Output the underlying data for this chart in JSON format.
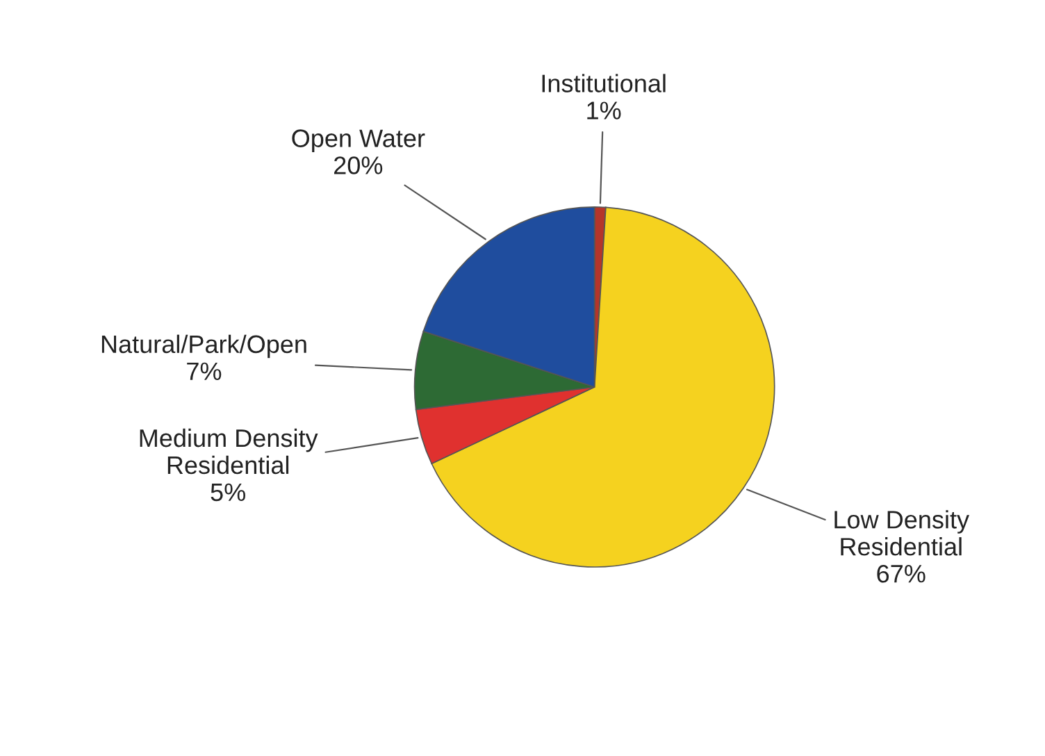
{
  "chart_data": {
    "type": "pie",
    "categories": [
      "Institutional",
      "Low Density\nResidential",
      "Medium Density\nResidential",
      "Natural/Park/Open",
      "Open Water"
    ],
    "values": [
      1,
      67,
      5,
      7,
      20
    ],
    "value_labels": [
      "1%",
      "67%",
      "5%",
      "7%",
      "20%"
    ],
    "colors": [
      "#b5352a",
      "#f5d21f",
      "#e0312f",
      "#2d6a34",
      "#1f4d9e"
    ]
  }
}
